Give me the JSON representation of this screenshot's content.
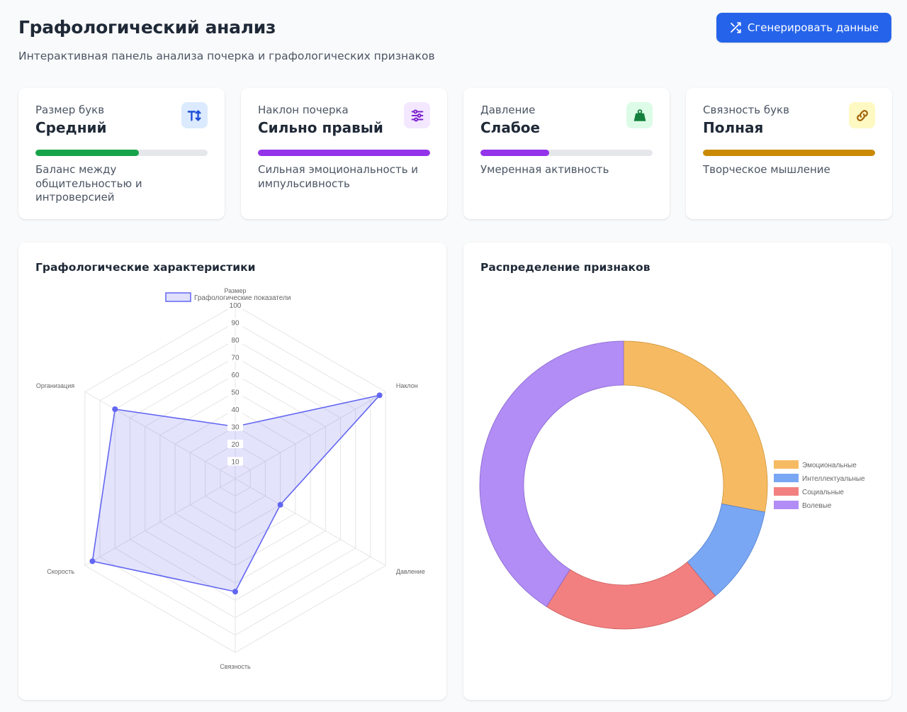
{
  "header": {
    "title": "Графологический анализ",
    "subtitle": "Интерактивная панель анализа почерка и графологических признаков",
    "generate_button_label": "Сгенерировать данные",
    "generate_button_icon": "shuffle-icon"
  },
  "cards": [
    {
      "label": "Размер букв",
      "value": "Средний",
      "progress": 0.6,
      "color": "#16a34a",
      "icon": "text-size-icon",
      "icon_bg": "#dbeafe",
      "icon_color": "#1d4ed8",
      "description": "Баланс между общительностью и интроверсией"
    },
    {
      "label": "Наклон почерка",
      "value": "Сильно правый",
      "progress": 1.0,
      "color": "#9333ea",
      "icon": "sliders-icon",
      "icon_bg": "#f3e8ff",
      "icon_color": "#7e22ce",
      "description": "Сильная эмоциональность и импульсивность"
    },
    {
      "label": "Давление",
      "value": "Слабое",
      "progress": 0.4,
      "color": "#9333ea",
      "icon": "weight-icon",
      "icon_bg": "#dcfce7",
      "icon_color": "#15803d",
      "description": "Умеренная активность"
    },
    {
      "label": "Связность букв",
      "value": "Полная",
      "progress": 1.0,
      "color": "#ca8a04",
      "icon": "link-icon",
      "icon_bg": "#fef9c3",
      "icon_color": "#a16207",
      "description": "Творческое мышление"
    }
  ],
  "radar_panel": {
    "title": "Графологические характеристики"
  },
  "donut_panel": {
    "title": "Распределение признаков"
  },
  "chart_data": [
    {
      "type": "radar",
      "series": [
        {
          "name": "Графологические показатели",
          "values": [
            30,
            96,
            30,
            65,
            95,
            80
          ],
          "color": "#6366f1"
        }
      ],
      "categories": [
        "Размер",
        "Наклон",
        "Давление",
        "Связность",
        "Скорость",
        "Организация"
      ],
      "ticks": [
        10,
        20,
        30,
        40,
        50,
        60,
        70,
        80,
        90,
        100
      ],
      "range": [
        0,
        100
      ],
      "legend_position": "top"
    },
    {
      "type": "pie",
      "labels": [
        "Эмоциональные",
        "Интеллектуальные",
        "Социальные",
        "Волевые"
      ],
      "values": [
        28,
        11,
        20,
        41
      ],
      "colors": [
        "#f6bb62",
        "#7aa7f4",
        "#f28080",
        "#b18df5"
      ],
      "legend_position": "right"
    }
  ]
}
